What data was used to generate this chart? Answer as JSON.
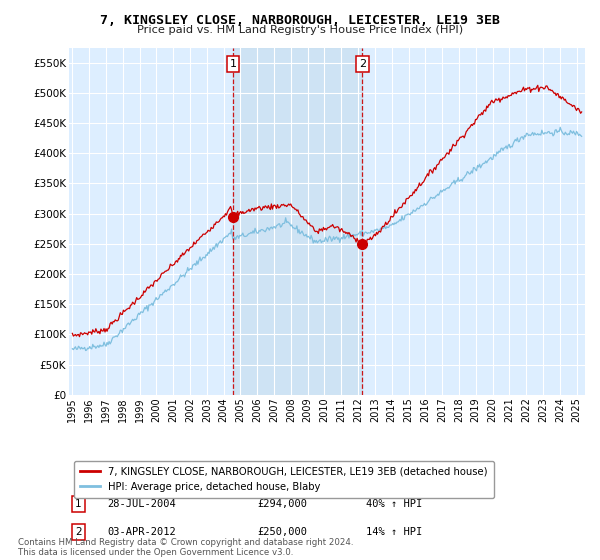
{
  "title": "7, KINGSLEY CLOSE, NARBOROUGH, LEICESTER, LE19 3EB",
  "subtitle": "Price paid vs. HM Land Registry's House Price Index (HPI)",
  "ylim": [
    0,
    575000
  ],
  "yticks": [
    0,
    50000,
    100000,
    150000,
    200000,
    250000,
    300000,
    350000,
    400000,
    450000,
    500000,
    550000
  ],
  "ytick_labels": [
    "£0",
    "£50K",
    "£100K",
    "£150K",
    "£200K",
    "£250K",
    "£300K",
    "£350K",
    "£400K",
    "£450K",
    "£500K",
    "£550K"
  ],
  "hpi_color": "#7fbfdf",
  "price_color": "#cc0000",
  "background_color": "#ffffff",
  "plot_bg_color": "#ddeeff",
  "grid_color": "#ffffff",
  "shade_color": "#c8dff0",
  "legend_label_price": "7, KINGSLEY CLOSE, NARBOROUGH, LEICESTER, LE19 3EB (detached house)",
  "legend_label_hpi": "HPI: Average price, detached house, Blaby",
  "transaction1_date": "28-JUL-2004",
  "transaction1_price": 294000,
  "transaction1_hpi": "40%",
  "transaction2_date": "03-APR-2012",
  "transaction2_price": 250000,
  "transaction2_hpi": "14%",
  "footnote": "Contains HM Land Registry data © Crown copyright and database right 2024.\nThis data is licensed under the Open Government Licence v3.0.",
  "vline1_x": 2004.57,
  "vline2_x": 2012.25,
  "xlim_left": 1994.8,
  "xlim_right": 2025.5
}
